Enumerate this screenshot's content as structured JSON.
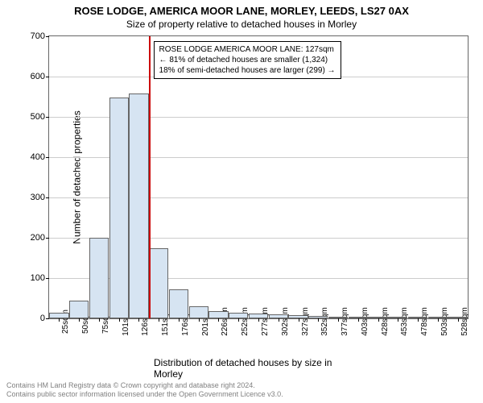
{
  "titles": {
    "main": "ROSE LODGE, AMERICA MOOR LANE, MORLEY, LEEDS, LS27 0AX",
    "sub": "Size of property relative to detached houses in Morley"
  },
  "chart": {
    "type": "bar",
    "ylabel": "Number of detached properties",
    "xlabel": "Distribution of detached houses by size in Morley",
    "ylim": [
      0,
      700
    ],
    "ytick_step": 100,
    "yticks": [
      0,
      100,
      200,
      300,
      400,
      500,
      600,
      700
    ],
    "categories": [
      "25sqm",
      "50sqm",
      "75sqm",
      "101sqm",
      "126sqm",
      "151sqm",
      "176sqm",
      "201sqm",
      "226sqm",
      "252sqm",
      "277sqm",
      "302sqm",
      "327sqm",
      "352sqm",
      "377sqm",
      "403sqm",
      "428sqm",
      "453sqm",
      "478sqm",
      "503sqm",
      "528sqm"
    ],
    "values": [
      15,
      45,
      200,
      548,
      558,
      175,
      72,
      30,
      18,
      14,
      12,
      10,
      8,
      6,
      5,
      4,
      3,
      2,
      2,
      1,
      1
    ],
    "bar_fill": "#d6e4f2",
    "bar_stroke": "#666666",
    "background_color": "#ffffff",
    "grid_color": "#cccccc",
    "axis_color": "#666666",
    "label_fontsize": 12,
    "tick_fontsize": 11
  },
  "marker": {
    "category_index": 4,
    "color": "#cc0000",
    "width": 2
  },
  "annotation": {
    "lines": [
      "ROSE LODGE AMERICA MOOR LANE: 127sqm",
      "← 81% of detached houses are smaller (1,324)",
      "18% of semi-detached houses are larger (299) →"
    ],
    "border_color": "#000000",
    "background": "#ffffff",
    "fontsize": 10
  },
  "footer": {
    "line1": "Contains HM Land Registry data © Crown copyright and database right 2024.",
    "line2": "Contains public sector information licensed under the Open Government Licence v3.0."
  }
}
